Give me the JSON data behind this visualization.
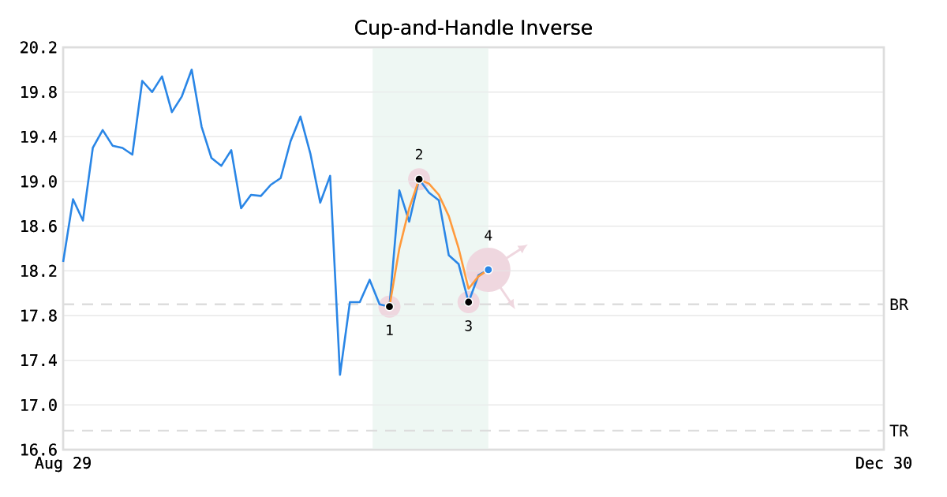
{
  "chart_data": {
    "type": "line",
    "title": "Cup-and-Handle Inverse",
    "categories": [
      "Aug 29",
      null,
      null,
      null,
      null,
      null,
      null,
      null,
      null,
      null,
      null,
      null,
      null,
      null,
      null,
      null,
      null,
      null,
      null,
      null,
      null,
      null,
      null,
      null,
      null,
      null,
      null,
      null,
      null,
      null,
      null,
      null,
      null,
      null,
      null,
      null,
      null,
      null,
      null,
      null,
      null,
      null,
      null,
      null,
      null,
      null,
      null,
      null,
      null,
      null,
      null,
      null,
      null,
      null,
      null,
      null,
      null,
      null,
      null,
      null,
      null,
      null,
      null,
      null,
      null,
      null,
      null,
      null,
      null,
      null,
      null,
      null,
      null,
      null,
      null,
      null,
      null,
      null,
      null,
      null,
      null,
      null,
      null,
      "Dec 30"
    ],
    "ylim": [
      16.6,
      20.2
    ],
    "yticks": [
      16.6,
      {
        "value": 17,
        "label": "17.0"
      },
      17.4,
      17.8,
      18.2,
      18.6,
      {
        "value": 19,
        "label": "19.0"
      },
      19.4,
      19.8,
      20.2
    ],
    "grid": "y",
    "series": [
      {
        "color": "#2a86e6",
        "values": [
          18.28,
          18.84,
          18.65,
          19.3,
          19.46,
          19.32,
          19.3,
          19.24,
          19.9,
          19.8,
          19.94,
          19.62,
          19.76,
          20.0,
          19.49,
          19.21,
          19.14,
          19.28,
          18.76,
          18.88,
          18.87,
          18.97,
          19.03,
          19.36,
          19.58,
          19.25,
          18.81,
          19.05,
          17.27,
          17.92,
          17.92,
          18.12,
          17.9,
          17.88,
          18.92,
          18.64,
          19.02,
          18.9,
          18.83,
          18.34,
          18.26,
          17.92,
          18.16,
          18.21,
          null,
          null,
          null,
          null,
          null,
          null,
          null,
          null,
          null,
          null,
          null,
          null,
          null,
          null,
          null,
          null,
          null,
          null,
          null,
          null,
          null,
          null,
          null,
          null,
          null,
          null,
          null,
          null,
          null,
          null,
          null,
          null,
          null,
          null,
          null,
          null,
          null,
          null,
          null,
          null
        ]
      },
      {
        "color": "#ff9a3c",
        "values": [
          null,
          null,
          null,
          null,
          null,
          null,
          null,
          null,
          null,
          null,
          null,
          null,
          null,
          null,
          null,
          null,
          null,
          null,
          null,
          null,
          null,
          null,
          null,
          null,
          null,
          null,
          null,
          null,
          null,
          null,
          null,
          null,
          null,
          17.88,
          18.4,
          18.76,
          19.02,
          18.98,
          18.88,
          18.69,
          18.4,
          18.04,
          18.15,
          18.21,
          null,
          null,
          null,
          null,
          null,
          null,
          null,
          null,
          null,
          null,
          null,
          null,
          null,
          null,
          null,
          null,
          null,
          null,
          null,
          null,
          null,
          null,
          null,
          null,
          null,
          null,
          null,
          null,
          null,
          null,
          null,
          null,
          null,
          null,
          null,
          null,
          null,
          null,
          null,
          null
        ]
      },
      {
        "type": "scatter",
        "color": "#000000",
        "values": [
          null,
          null,
          null,
          null,
          null,
          null,
          null,
          null,
          null,
          null,
          null,
          null,
          null,
          null,
          null,
          null,
          null,
          null,
          null,
          null,
          null,
          null,
          null,
          null,
          null,
          null,
          null,
          null,
          null,
          null,
          null,
          null,
          null,
          17.88,
          null,
          null,
          19.02,
          null,
          null,
          null,
          null,
          17.92,
          null,
          null,
          null,
          null,
          null,
          null,
          null,
          null,
          null,
          null,
          null,
          null,
          null,
          null,
          null,
          null,
          null,
          null,
          null,
          null,
          null,
          null,
          null,
          null,
          null,
          null,
          null,
          null,
          null,
          null,
          null,
          null,
          null,
          null,
          null,
          null,
          null,
          null,
          null,
          null,
          null,
          null
        ]
      },
      {
        "type": "scatter",
        "color": "#2a86e6",
        "values": [
          null,
          null,
          null,
          null,
          null,
          null,
          null,
          null,
          null,
          null,
          null,
          null,
          null,
          null,
          null,
          null,
          null,
          null,
          null,
          null,
          null,
          null,
          null,
          null,
          null,
          null,
          null,
          null,
          null,
          null,
          null,
          null,
          null,
          null,
          null,
          null,
          null,
          null,
          null,
          null,
          null,
          null,
          null,
          18.21,
          null,
          null,
          null,
          null,
          null,
          null,
          null,
          null,
          null,
          null,
          null,
          null,
          null,
          null,
          null,
          null,
          null,
          null,
          null,
          null,
          null,
          null,
          null,
          null,
          null,
          null,
          null,
          null,
          null,
          null,
          null,
          null,
          null,
          null,
          null,
          null,
          null,
          null,
          null,
          null
        ]
      }
    ],
    "ref_lines": [
      {
        "axis": "y",
        "value": 17.9,
        "label": "BR",
        "color": "#dddddd",
        "line_style": "dashed"
      },
      {
        "axis": "y",
        "value": 16.77,
        "label": "TR",
        "color": "#dddddd",
        "line_style": "dashed"
      }
    ],
    "annotations": [
      "1",
      "2",
      "3",
      "4"
    ]
  }
}
